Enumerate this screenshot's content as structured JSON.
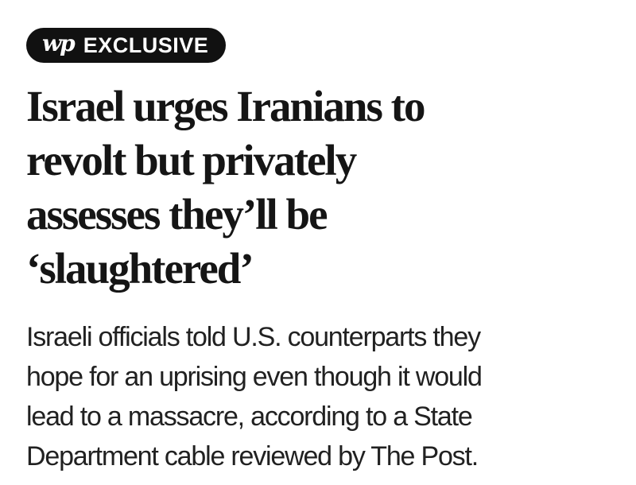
{
  "badge": {
    "logo_text": "wp",
    "label": "EXCLUSIVE",
    "bg_color": "#111111",
    "text_color": "#ffffff"
  },
  "headline": {
    "full_text": "Israel urges Iranians to revolt but privately assesses they’ll be ‘slaughtered’",
    "color": "#151515",
    "lines": [
      "Israel urges Iranians to",
      "revolt but privately",
      "assesses they’ll be",
      "‘slaughtered’"
    ]
  },
  "subheadline": {
    "full_text": "Israeli officials told U.S. counterparts they hope for an uprising even though it would lead to a massacre, according to a State Department cable reviewed by The Post.",
    "color": "#212121",
    "lines": [
      "Israeli officials told U.S. counterparts they",
      "hope for an uprising even though it would",
      "lead to a massacre, according to a State",
      "Department cable reviewed by The Post."
    ]
  }
}
